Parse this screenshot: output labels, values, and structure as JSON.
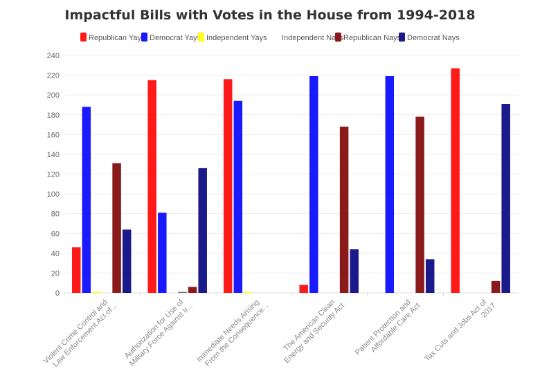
{
  "chart_data": {
    "type": "bar",
    "title": "Impactful Bills with Votes in the House from 1994-2018",
    "xlabel": "",
    "ylabel": "",
    "ylim": [
      0,
      240
    ],
    "yticks": [
      0,
      20,
      40,
      60,
      80,
      100,
      120,
      140,
      160,
      180,
      200,
      220,
      240
    ],
    "grid": true,
    "legend_position": "top",
    "categories": [
      [
        "Violent Crime Control and",
        "Law Enforcement Act of..."
      ],
      [
        "Authorization for Use of",
        "Military Force Against Ir..."
      ],
      [
        "Immediate Needs Arising",
        "From the Consequence..."
      ],
      [
        "The American Clean",
        "Energy and Security Act"
      ],
      [
        "Patient Protection and",
        "Affordable Care Act"
      ],
      [
        "Tax Cuts and Jobs Act of",
        "2017"
      ]
    ],
    "series": [
      {
        "name": "Republican Yays",
        "color": "#ff1a1a",
        "values": [
          46,
          215,
          216,
          8,
          0,
          227
        ]
      },
      {
        "name": "Democrat Yays",
        "color": "#1a1aff",
        "values": [
          188,
          81,
          194,
          219,
          219,
          0
        ]
      },
      {
        "name": "Independent Yays",
        "color": "#ffff1a",
        "values": [
          1,
          0,
          1,
          0,
          0,
          0
        ]
      },
      {
        "name": "Independent Nays",
        "color": "#777777",
        "values": [
          0,
          1,
          0,
          0,
          0,
          0
        ]
      },
      {
        "name": "Republican Nays",
        "color": "#8b1a1a",
        "values": [
          131,
          6,
          0,
          168,
          178,
          12
        ]
      },
      {
        "name": "Democrat Nays",
        "color": "#1a1a8b",
        "values": [
          64,
          126,
          0,
          44,
          34,
          191
        ]
      }
    ]
  }
}
